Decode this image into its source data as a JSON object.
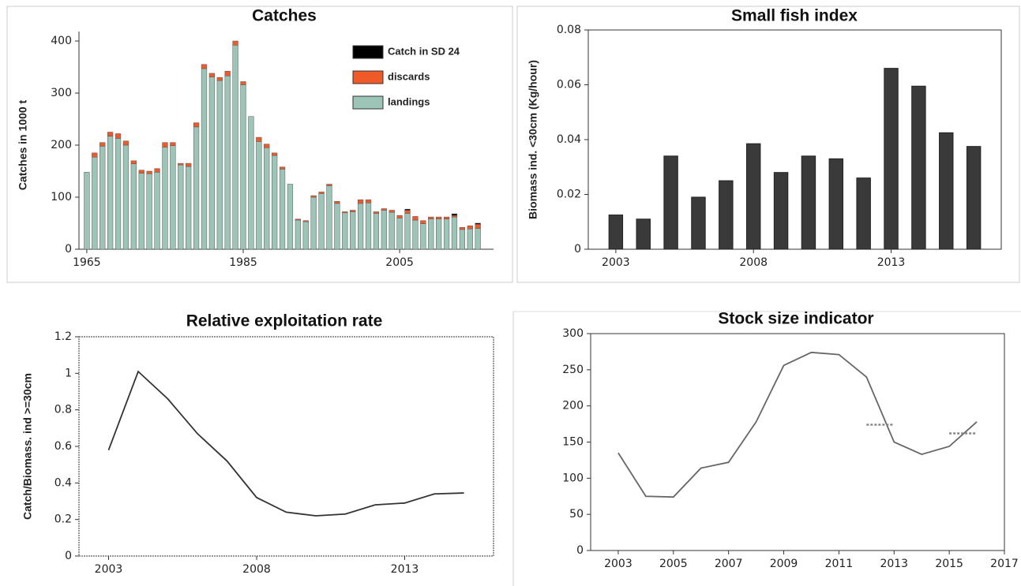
{
  "chart_data": [
    {
      "type": "stacked_bar",
      "title": "Catches",
      "ylabel": "Catches in 1000 t",
      "x": [
        1965,
        1966,
        1967,
        1968,
        1969,
        1970,
        1971,
        1972,
        1973,
        1974,
        1975,
        1976,
        1977,
        1978,
        1979,
        1980,
        1981,
        1982,
        1983,
        1984,
        1985,
        1986,
        1987,
        1988,
        1989,
        1990,
        1991,
        1992,
        1993,
        1994,
        1995,
        1996,
        1997,
        1998,
        1999,
        2000,
        2001,
        2002,
        2003,
        2004,
        2005,
        2006,
        2007,
        2008,
        2009,
        2010,
        2011,
        2012,
        2013,
        2014,
        2015
      ],
      "series": [
        {
          "name": "landings",
          "color": "#9cc5b8",
          "values": [
            148,
            177,
            198,
            217,
            213,
            200,
            164,
            146,
            145,
            148,
            196,
            199,
            162,
            159,
            235,
            347,
            331,
            324,
            333,
            392,
            316,
            255,
            207,
            195,
            180,
            154,
            125,
            56,
            53,
            100,
            107,
            122,
            88,
            70,
            72,
            88,
            89,
            69,
            75,
            71,
            60,
            69,
            56,
            49,
            58,
            58,
            58,
            62,
            38,
            39,
            40
          ]
        },
        {
          "name": "discards",
          "color": "#f05a28",
          "values": [
            0,
            8,
            7,
            8,
            9,
            8,
            6,
            6,
            5,
            7,
            9,
            6,
            3,
            6,
            8,
            8,
            7,
            6,
            9,
            8,
            6,
            0,
            8,
            7,
            5,
            4,
            0,
            2,
            2,
            3,
            3,
            3,
            4,
            2,
            3,
            7,
            6,
            3,
            3,
            4,
            5,
            6,
            7,
            6,
            4,
            4,
            4,
            3,
            4,
            6,
            8
          ]
        },
        {
          "name": "Catch in SD 24",
          "color": "#000000",
          "values": [
            0,
            0,
            0,
            0,
            0,
            0,
            0,
            0,
            0,
            0,
            0,
            0,
            0,
            0,
            0,
            0,
            0,
            0,
            0,
            0,
            0,
            0,
            0,
            0,
            0,
            0,
            0,
            0,
            0,
            0,
            0,
            0,
            0,
            0,
            0,
            0,
            0,
            0,
            0,
            0,
            0,
            2,
            0,
            0,
            0,
            0,
            0,
            3,
            0,
            0,
            2
          ]
        }
      ],
      "xlim": [
        1964,
        2017
      ],
      "xticks": [
        1965,
        1985,
        2005
      ],
      "ylim": [
        0,
        400
      ],
      "yticks": [
        0,
        100,
        200,
        300,
        400
      ],
      "legend": "upper right"
    },
    {
      "type": "bar",
      "title": "Small fish index",
      "ylabel": "Biomass ind. <30cm (Kg/hour)",
      "x": [
        2003,
        2004,
        2005,
        2006,
        2007,
        2008,
        2009,
        2010,
        2011,
        2012,
        2013,
        2014,
        2015,
        2016
      ],
      "values": [
        0.0125,
        0.011,
        0.034,
        0.019,
        0.025,
        0.0385,
        0.028,
        0.034,
        0.033,
        0.026,
        0.066,
        0.0595,
        0.0425,
        0.0375
      ],
      "color": "#3a3a3a",
      "xlim": [
        2002,
        2017
      ],
      "xticks": [
        2003,
        2008,
        2013
      ],
      "ylim": [
        0,
        0.08
      ],
      "yticks": [
        0,
        0.02,
        0.04,
        0.06,
        0.08
      ]
    },
    {
      "type": "line",
      "title": "Relative exploitation rate",
      "ylabel": "Catch/Biomass. ind >=30cm",
      "x": [
        2003,
        2004,
        2005,
        2006,
        2007,
        2008,
        2009,
        2010,
        2011,
        2012,
        2013,
        2014,
        2015
      ],
      "series": [
        {
          "color": "#333333",
          "values": [
            0.58,
            1.01,
            0.86,
            0.67,
            0.52,
            0.32,
            0.24,
            0.22,
            0.23,
            0.28,
            0.29,
            0.34,
            0.345
          ]
        }
      ],
      "xlim": [
        2002,
        2016
      ],
      "xticks": [
        2003,
        2008,
        2013
      ],
      "ylim": [
        0,
        1.2
      ],
      "yticks": [
        0,
        0.2,
        0.4,
        0.6,
        0.8,
        1,
        1.2
      ]
    },
    {
      "type": "line",
      "title": "Stock size indicator",
      "x": [
        2003,
        2004,
        2005,
        2006,
        2007,
        2008,
        2009,
        2010,
        2011,
        2012,
        2013,
        2014,
        2015,
        2016
      ],
      "series": [
        {
          "color": "#666666",
          "values": [
            135,
            75,
            74,
            114,
            122,
            178,
            256,
            274,
            271,
            240,
            150,
            133,
            144,
            178
          ]
        },
        {
          "color": "#888888",
          "dashed": true,
          "values": [
            null,
            null,
            null,
            null,
            null,
            null,
            null,
            null,
            null,
            174,
            174,
            null,
            162,
            162
          ]
        }
      ],
      "xlim": [
        2002,
        2017
      ],
      "xticks": [
        2003,
        2005,
        2007,
        2009,
        2011,
        2013,
        2015,
        2017
      ],
      "ylim": [
        0,
        300
      ],
      "yticks": [
        0,
        50,
        100,
        150,
        200,
        250,
        300
      ]
    }
  ]
}
